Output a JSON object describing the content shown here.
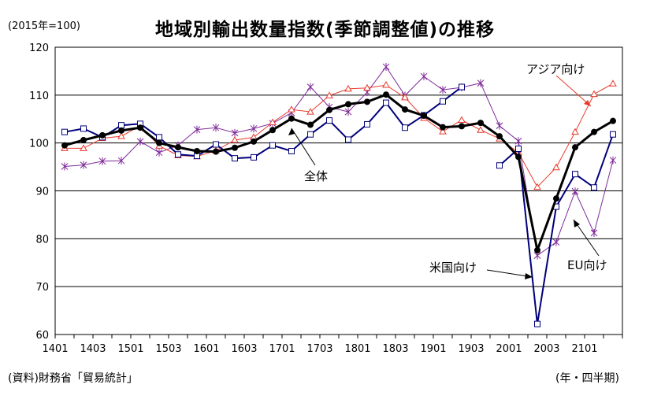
{
  "header": {
    "title": "地域別輸出数量指数(季節調整値)の推移",
    "unit": "(2015年=100)"
  },
  "footer": {
    "source": "(資料)財務省「貿易統計」",
    "period": "(年・四半期)"
  },
  "chart_data": {
    "type": "line",
    "title": "地域別輸出数量指数(季節調整値)の推移",
    "xlabel": "",
    "ylabel": "(2015年=100)",
    "ylim": [
      60,
      120
    ],
    "yticks": [
      60,
      70,
      80,
      90,
      100,
      110,
      120
    ],
    "grid": true,
    "x": [
      "1401",
      "1402",
      "1403",
      "1404",
      "1501",
      "1502",
      "1503",
      "1504",
      "1601",
      "1602",
      "1603",
      "1604",
      "1701",
      "1702",
      "1703",
      "1704",
      "1801",
      "1802",
      "1803",
      "1804",
      "1901",
      "1902",
      "1903",
      "1904",
      "2001",
      "2002",
      "2003",
      "2004",
      "2101",
      "2102"
    ],
    "xtick_labels": [
      "1401",
      "1403",
      "1501",
      "1503",
      "1601",
      "1603",
      "1701",
      "1703",
      "1801",
      "1803",
      "1901",
      "1903",
      "2001",
      "2003",
      "2101"
    ],
    "series": [
      {
        "name": "全体",
        "color": "#000000",
        "marker": "filled-circle",
        "values": [
          99.5,
          100.6,
          101.6,
          102.6,
          103.2,
          100.0,
          99.1,
          98.3,
          98.2,
          99.0,
          100.3,
          102.7,
          105.1,
          103.8,
          106.9,
          108.1,
          108.6,
          110.1,
          107.0,
          105.7,
          103.3,
          103.5,
          104.2,
          101.4,
          97.1,
          77.6,
          88.4,
          99.1,
          102.3,
          104.6
        ]
      },
      {
        "name": "アジア向け",
        "color": "#e8392b",
        "marker": "triangle",
        "values": [
          98.9,
          98.9,
          101.0,
          101.4,
          103.6,
          99.4,
          97.4,
          97.2,
          98.4,
          100.6,
          101.2,
          104.3,
          107.0,
          106.5,
          109.9,
          111.3,
          111.5,
          112.1,
          109.5,
          105.2,
          102.4,
          104.8,
          102.7,
          100.9,
          98.0,
          90.8,
          94.9,
          102.3,
          110.2,
          112.4
        ]
      },
      {
        "name": "米国向け",
        "color": "#00007a",
        "marker": "square",
        "values": [
          102.3,
          103.0,
          101.2,
          103.7,
          104.0,
          101.2,
          97.6,
          97.3,
          99.7,
          96.8,
          97.0,
          99.5,
          98.3,
          101.8,
          104.7,
          100.7,
          103.9,
          108.4,
          103.2,
          105.8,
          108.7,
          111.7,
          null,
          95.3,
          98.8,
          62.2,
          86.7,
          93.5,
          90.7,
          101.8
        ]
      },
      {
        "name": "EU向け",
        "color": "#7f2b9a",
        "marker": "star",
        "values": [
          95.1,
          95.4,
          96.2,
          96.3,
          100.3,
          98.0,
          99.5,
          102.8,
          103.2,
          102.1,
          103.0,
          104.1,
          106.3,
          111.7,
          107.5,
          106.5,
          110.6,
          115.9,
          109.9,
          113.9,
          111.1,
          111.6,
          112.5,
          103.6,
          100.4,
          76.5,
          79.3,
          89.9,
          81.2,
          96.4
        ]
      }
    ],
    "annotations": [
      "全体",
      "アジア向け",
      "米国向け",
      "EU向け"
    ],
    "legend": "none"
  }
}
